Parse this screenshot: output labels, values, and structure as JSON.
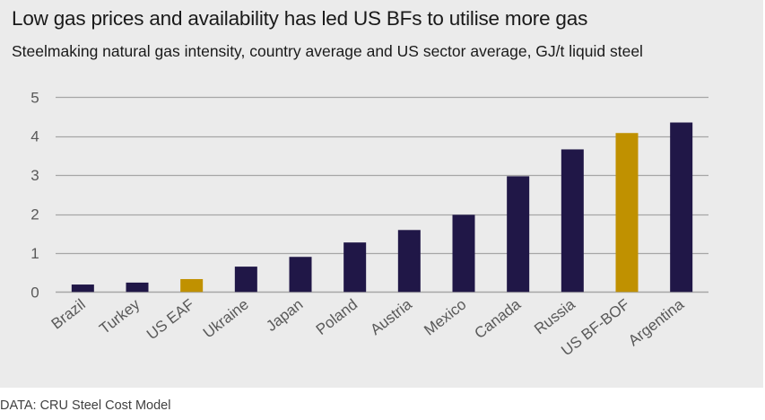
{
  "header": {
    "title": "Low gas prices and availability has led US BFs to utilise more gas",
    "subtitle": "Steelmaking natural gas intensity, country average and US sector average, GJ/t liquid steel"
  },
  "footer": {
    "source": "DATA: CRU Steel Cost Model"
  },
  "colors": {
    "background": "#ebebeb",
    "country_bar": "#201747",
    "us_bar": "#c09100",
    "gridline": "#a6a6a6"
  },
  "chart_data": {
    "type": "bar",
    "title": "Low gas prices and availability has led US BFs to utilise more gas",
    "subtitle": "Steelmaking natural gas intensity, country average and US sector average, GJ/t liquid steel",
    "xlabel": "",
    "ylabel": "GJ/t liquid steel",
    "ylim": [
      0,
      5
    ],
    "yticks": [
      0,
      1,
      2,
      3,
      4,
      5
    ],
    "grid": true,
    "legend": "none",
    "categories": [
      "Brazil",
      "Turkey",
      "US EAF",
      "Ukraine",
      "Japan",
      "Poland",
      "Austria",
      "Mexico",
      "Canada",
      "Russia",
      "US BF-BOF",
      "Argentina"
    ],
    "values": [
      0.19,
      0.24,
      0.33,
      0.65,
      0.9,
      1.27,
      1.59,
      1.98,
      2.97,
      3.66,
      4.08,
      4.35
    ],
    "highlight": [
      false,
      false,
      true,
      false,
      false,
      false,
      false,
      false,
      false,
      false,
      true,
      false
    ],
    "source": "DATA: CRU Steel Cost Model"
  }
}
